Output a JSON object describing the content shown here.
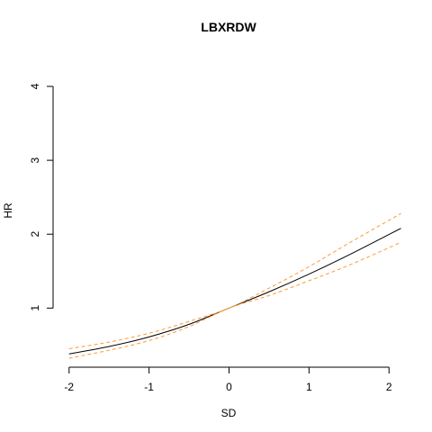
{
  "chart_data": {
    "type": "line",
    "title": "LBXRDW",
    "xlabel": "SD",
    "ylabel": "HR",
    "xlim": [
      -2.2,
      2.2
    ],
    "ylim": [
      0.2,
      4.0
    ],
    "xticks": [
      -2,
      -1,
      0,
      1,
      2
    ],
    "yticks": [
      1,
      2,
      3,
      4
    ],
    "grid": false,
    "x": [
      -2.0,
      -1.5,
      -1.0,
      -0.5,
      0.0,
      0.5,
      1.0,
      1.5,
      2.15
    ],
    "series": [
      {
        "values": [
          0.38,
          0.48,
          0.61,
          0.78,
          1.0,
          1.22,
          1.46,
          1.72,
          2.08
        ],
        "color": "#000000",
        "dash": "solid"
      },
      {
        "values": [
          0.45,
          0.54,
          0.66,
          0.82,
          1.0,
          1.27,
          1.56,
          1.88,
          2.28
        ],
        "color": "#ff9933",
        "dash": "dashed"
      },
      {
        "values": [
          0.32,
          0.43,
          0.56,
          0.75,
          1.0,
          1.17,
          1.37,
          1.58,
          1.89
        ],
        "color": "#ff9933",
        "dash": "dashed"
      }
    ]
  }
}
